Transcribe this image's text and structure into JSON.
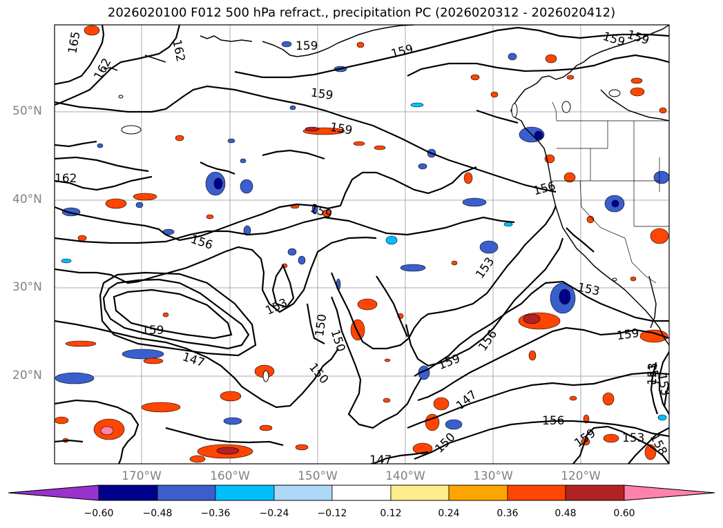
{
  "title": "2026020100 F012 500 hPa refract., precipitation PC (2026020312 - 2026020412)",
  "lat_labels": [
    "50°N",
    "40°N",
    "30°N",
    "20°N"
  ],
  "lon_labels": [
    "170°W",
    "160°W",
    "150°W",
    "140°W",
    "130°W",
    "120°W"
  ],
  "contour_labels": [
    "165",
    "162",
    "162",
    "162",
    "159",
    "159",
    "159",
    "159",
    "159",
    "159",
    "159",
    "156",
    "156",
    "153",
    "153",
    "159",
    "150",
    "150",
    "159",
    "156",
    "153",
    "159",
    "147",
    "147",
    "156",
    "159",
    "153",
    "153",
    "150",
    "147",
    "153",
    "153",
    "158",
    "150"
  ],
  "colorbar": {
    "tick_labels": [
      "−0.60",
      "−0.48",
      "−0.36",
      "−0.24",
      "−0.12",
      "0.12",
      "0.24",
      "0.36",
      "0.48",
      "0.60"
    ],
    "colors": [
      "#9a32cd",
      "#00008b",
      "#3a5fcd",
      "#00bfff",
      "#add8f7",
      "#ffffff",
      "#ffec8b",
      "#ffa500",
      "#ff4500",
      "#b22222",
      "#ff82ab"
    ]
  }
}
